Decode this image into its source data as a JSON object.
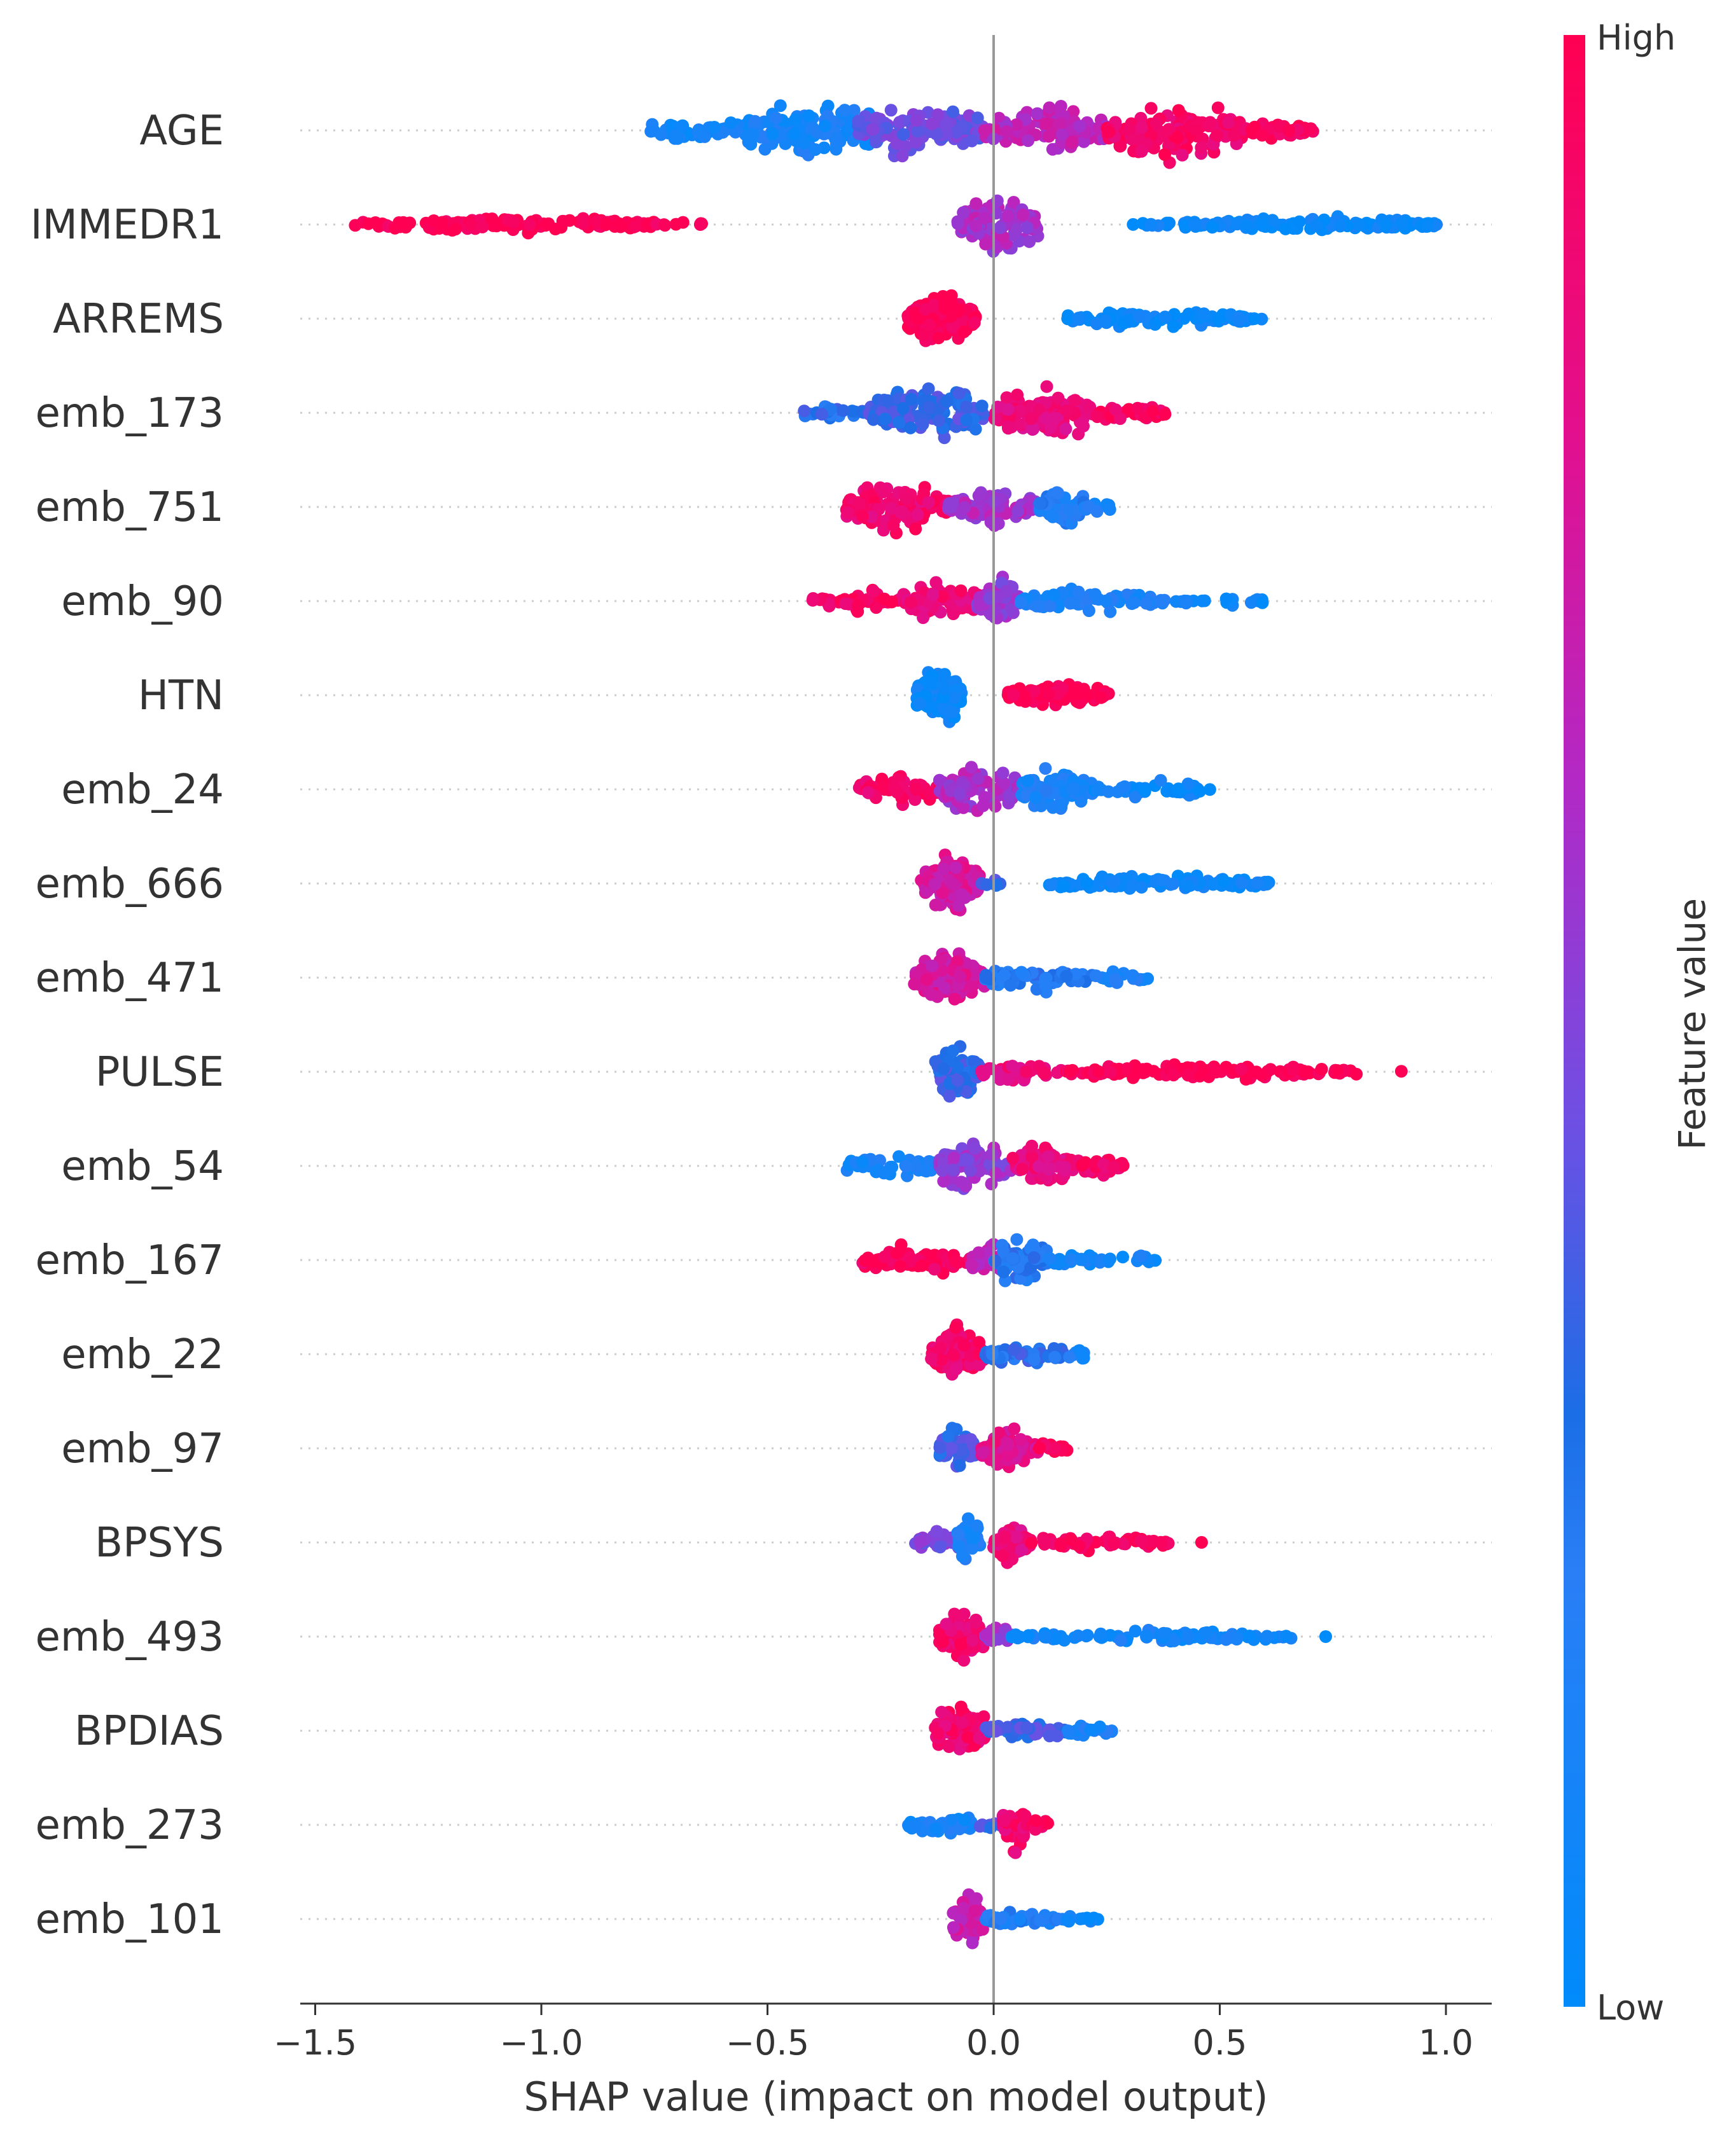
{
  "chart_data": {
    "type": "scatter",
    "subtype": "shap-beeswarm",
    "title": "",
    "xlabel": "SHAP value (impact on model output)",
    "ylabel": "",
    "xlim": [
      -1.55,
      1.1
    ],
    "xticks": [
      -1.5,
      -1.0,
      -0.5,
      0.0,
      0.5,
      1.0
    ],
    "xtick_labels": [
      "−1.5",
      "−1.0",
      "−0.5",
      "0.0",
      "0.5",
      "1.0"
    ],
    "colorbar": {
      "label": "Feature value",
      "high_label": "High",
      "low_label": "Low",
      "high_color": "#ff0052",
      "low_color": "#008bfb"
    },
    "features": [
      {
        "name": "AGE",
        "segments": [
          {
            "from": -0.78,
            "to": -0.52,
            "feat": 0.1,
            "h": 0.35,
            "n": 55
          },
          {
            "from": -0.55,
            "to": -0.25,
            "feat": 0.12,
            "h": 1.0,
            "n": 150
          },
          {
            "from": -0.3,
            "to": -0.02,
            "feat": 0.45,
            "h": 0.85,
            "n": 110
          },
          {
            "from": -0.02,
            "to": 0.25,
            "feat": 0.65,
            "h": 0.8,
            "n": 105
          },
          {
            "from": 0.25,
            "to": 0.55,
            "feat": 0.92,
            "h": 0.95,
            "n": 135
          },
          {
            "from": 0.55,
            "to": 0.71,
            "feat": 0.97,
            "h": 0.3,
            "n": 40
          }
        ]
      },
      {
        "name": "IMMEDR1",
        "segments": [
          {
            "from": -1.42,
            "to": -1.34,
            "feat": 1.0,
            "h": 0.12,
            "n": 10
          },
          {
            "from": -1.34,
            "to": -0.75,
            "feat": 1.0,
            "h": 0.25,
            "n": 130
          },
          {
            "from": -0.75,
            "to": -0.64,
            "feat": 1.0,
            "h": 0.1,
            "n": 8
          },
          {
            "from": -0.08,
            "to": 0.1,
            "feat": 0.6,
            "h": 0.85,
            "n": 100
          },
          {
            "from": 0.3,
            "to": 0.42,
            "feat": 0.05,
            "h": 0.1,
            "n": 10
          },
          {
            "from": 0.42,
            "to": 0.98,
            "feat": 0.05,
            "h": 0.25,
            "n": 120
          }
        ]
      },
      {
        "name": "ARREMS",
        "segments": [
          {
            "from": -0.19,
            "to": -0.04,
            "feat": 1.0,
            "h": 0.9,
            "n": 150
          },
          {
            "from": 0.16,
            "to": 0.57,
            "feat": 0.05,
            "h": 0.25,
            "n": 110
          },
          {
            "from": 0.57,
            "to": 0.62,
            "feat": 0.05,
            "h": 0.1,
            "n": 4
          }
        ]
      },
      {
        "name": "emb_173",
        "segments": [
          {
            "from": -0.42,
            "to": -0.26,
            "feat": 0.3,
            "h": 0.25,
            "n": 25
          },
          {
            "from": -0.28,
            "to": -0.02,
            "feat": 0.35,
            "h": 0.9,
            "n": 130
          },
          {
            "from": 0.0,
            "to": 0.22,
            "feat": 0.85,
            "h": 0.85,
            "n": 110
          },
          {
            "from": 0.22,
            "to": 0.38,
            "feat": 0.95,
            "h": 0.35,
            "n": 45
          }
        ]
      },
      {
        "name": "emb_751",
        "segments": [
          {
            "from": -0.33,
            "to": -0.1,
            "feat": 0.9,
            "h": 0.8,
            "n": 110
          },
          {
            "from": -0.1,
            "to": 0.1,
            "feat": 0.6,
            "h": 0.6,
            "n": 70
          },
          {
            "from": 0.1,
            "to": 0.2,
            "feat": 0.2,
            "h": 0.85,
            "n": 70
          },
          {
            "from": 0.2,
            "to": 0.26,
            "feat": 0.15,
            "h": 0.25,
            "n": 12
          }
        ]
      },
      {
        "name": "emb_90",
        "segments": [
          {
            "from": -0.4,
            "to": -0.2,
            "feat": 0.95,
            "h": 0.35,
            "n": 40
          },
          {
            "from": -0.2,
            "to": -0.03,
            "feat": 0.88,
            "h": 0.65,
            "n": 80
          },
          {
            "from": -0.04,
            "to": 0.06,
            "feat": 0.55,
            "h": 0.85,
            "n": 60
          },
          {
            "from": 0.06,
            "to": 0.38,
            "feat": 0.15,
            "h": 0.4,
            "n": 70
          },
          {
            "from": 0.4,
            "to": 0.6,
            "feat": 0.05,
            "h": 0.15,
            "n": 20
          }
        ]
      },
      {
        "name": "HTN",
        "segments": [
          {
            "from": -0.17,
            "to": -0.07,
            "feat": 0.05,
            "h": 0.9,
            "n": 130
          },
          {
            "from": 0.03,
            "to": 0.26,
            "feat": 1.0,
            "h": 0.4,
            "n": 120
          }
        ]
      },
      {
        "name": "emb_24",
        "segments": [
          {
            "from": -0.3,
            "to": -0.1,
            "feat": 0.92,
            "h": 0.55,
            "n": 75
          },
          {
            "from": -0.12,
            "to": 0.06,
            "feat": 0.6,
            "h": 0.85,
            "n": 90
          },
          {
            "from": 0.06,
            "to": 0.22,
            "feat": 0.15,
            "h": 0.75,
            "n": 85
          },
          {
            "from": 0.22,
            "to": 0.48,
            "feat": 0.08,
            "h": 0.25,
            "n": 45
          }
        ]
      },
      {
        "name": "emb_666",
        "segments": [
          {
            "from": -0.16,
            "to": -0.03,
            "feat": 0.75,
            "h": 0.95,
            "n": 110
          },
          {
            "from": -0.03,
            "to": 0.02,
            "feat": 0.35,
            "h": 0.15,
            "n": 6
          },
          {
            "from": 0.11,
            "to": 0.61,
            "feat": 0.05,
            "h": 0.25,
            "n": 110
          }
        ]
      },
      {
        "name": "emb_471",
        "segments": [
          {
            "from": -0.18,
            "to": -0.02,
            "feat": 0.75,
            "h": 0.95,
            "n": 110
          },
          {
            "from": -0.02,
            "to": 0.22,
            "feat": 0.25,
            "h": 0.45,
            "n": 70
          },
          {
            "from": 0.22,
            "to": 0.35,
            "feat": 0.15,
            "h": 0.2,
            "n": 20
          }
        ]
      },
      {
        "name": "PULSE",
        "segments": [
          {
            "from": -0.13,
            "to": -0.03,
            "feat": 0.35,
            "h": 0.95,
            "n": 90
          },
          {
            "from": -0.03,
            "to": 0.15,
            "feat": 0.85,
            "h": 0.3,
            "n": 40
          },
          {
            "from": 0.15,
            "to": 0.81,
            "feat": 1.0,
            "h": 0.25,
            "n": 140
          },
          {
            "from": 0.9,
            "to": 0.91,
            "feat": 1.0,
            "h": 0.05,
            "n": 1
          }
        ]
      },
      {
        "name": "emb_54",
        "segments": [
          {
            "from": -0.33,
            "to": -0.12,
            "feat": 0.12,
            "h": 0.4,
            "n": 50
          },
          {
            "from": -0.12,
            "to": 0.04,
            "feat": 0.55,
            "h": 0.85,
            "n": 90
          },
          {
            "from": 0.04,
            "to": 0.18,
            "feat": 0.85,
            "h": 0.75,
            "n": 70
          },
          {
            "from": 0.18,
            "to": 0.29,
            "feat": 0.92,
            "h": 0.3,
            "n": 30
          }
        ]
      },
      {
        "name": "emb_167",
        "segments": [
          {
            "from": -0.29,
            "to": -0.05,
            "feat": 0.95,
            "h": 0.45,
            "n": 70
          },
          {
            "from": -0.05,
            "to": 0.04,
            "feat": 0.7,
            "h": 0.55,
            "n": 35
          },
          {
            "from": 0.0,
            "to": 0.12,
            "feat": 0.25,
            "h": 0.9,
            "n": 70
          },
          {
            "from": 0.12,
            "to": 0.36,
            "feat": 0.08,
            "h": 0.25,
            "n": 40
          }
        ]
      },
      {
        "name": "emb_22",
        "segments": [
          {
            "from": -0.14,
            "to": -0.02,
            "feat": 0.9,
            "h": 0.9,
            "n": 90
          },
          {
            "from": -0.02,
            "to": 0.16,
            "feat": 0.3,
            "h": 0.4,
            "n": 50
          },
          {
            "from": 0.16,
            "to": 0.21,
            "feat": 0.15,
            "h": 0.2,
            "n": 10
          }
        ]
      },
      {
        "name": "emb_97",
        "segments": [
          {
            "from": -0.12,
            "to": -0.04,
            "feat": 0.35,
            "h": 0.8,
            "n": 60
          },
          {
            "from": -0.03,
            "to": 0.1,
            "feat": 0.8,
            "h": 0.75,
            "n": 70
          },
          {
            "from": 0.1,
            "to": 0.17,
            "feat": 0.95,
            "h": 0.35,
            "n": 15
          }
        ]
      },
      {
        "name": "BPSYS",
        "segments": [
          {
            "from": -0.18,
            "to": -0.06,
            "feat": 0.5,
            "h": 0.35,
            "n": 30
          },
          {
            "from": -0.08,
            "to": -0.03,
            "feat": 0.15,
            "h": 0.95,
            "n": 40
          },
          {
            "from": 0.0,
            "to": 0.08,
            "feat": 0.85,
            "h": 0.65,
            "n": 60
          },
          {
            "from": 0.08,
            "to": 0.4,
            "feat": 0.97,
            "h": 0.25,
            "n": 60
          },
          {
            "from": 0.45,
            "to": 0.46,
            "feat": 1.0,
            "h": 0.05,
            "n": 1
          }
        ]
      },
      {
        "name": "emb_493",
        "segments": [
          {
            "from": -0.12,
            "to": -0.02,
            "feat": 0.9,
            "h": 0.95,
            "n": 90
          },
          {
            "from": -0.02,
            "to": 0.04,
            "feat": 0.55,
            "h": 0.35,
            "n": 20
          },
          {
            "from": 0.04,
            "to": 0.66,
            "feat": 0.1,
            "h": 0.2,
            "n": 95
          },
          {
            "from": 0.73,
            "to": 0.74,
            "feat": 0.05,
            "h": 0.05,
            "n": 1
          }
        ]
      },
      {
        "name": "BPDIAS",
        "segments": [
          {
            "from": -0.13,
            "to": -0.02,
            "feat": 0.9,
            "h": 0.95,
            "n": 90
          },
          {
            "from": -0.02,
            "to": 0.16,
            "feat": 0.35,
            "h": 0.35,
            "n": 45
          },
          {
            "from": 0.16,
            "to": 0.27,
            "feat": 0.15,
            "h": 0.2,
            "n": 20
          }
        ]
      },
      {
        "name": "emb_273",
        "segments": [
          {
            "from": -0.19,
            "to": -0.03,
            "feat": 0.12,
            "h": 0.35,
            "n": 45
          },
          {
            "from": -0.03,
            "to": 0.02,
            "feat": 0.35,
            "h": 0.2,
            "n": 8
          },
          {
            "from": 0.02,
            "to": 0.07,
            "feat": 0.9,
            "h": 0.95,
            "n": 45
          },
          {
            "from": 0.07,
            "to": 0.12,
            "feat": 0.95,
            "h": 0.25,
            "n": 12
          }
        ]
      },
      {
        "name": "emb_101",
        "segments": [
          {
            "from": -0.09,
            "to": -0.02,
            "feat": 0.7,
            "h": 0.9,
            "n": 60
          },
          {
            "from": -0.02,
            "to": 0.16,
            "feat": 0.2,
            "h": 0.3,
            "n": 45
          },
          {
            "from": 0.16,
            "to": 0.24,
            "feat": 0.08,
            "h": 0.2,
            "n": 12
          }
        ]
      }
    ]
  }
}
